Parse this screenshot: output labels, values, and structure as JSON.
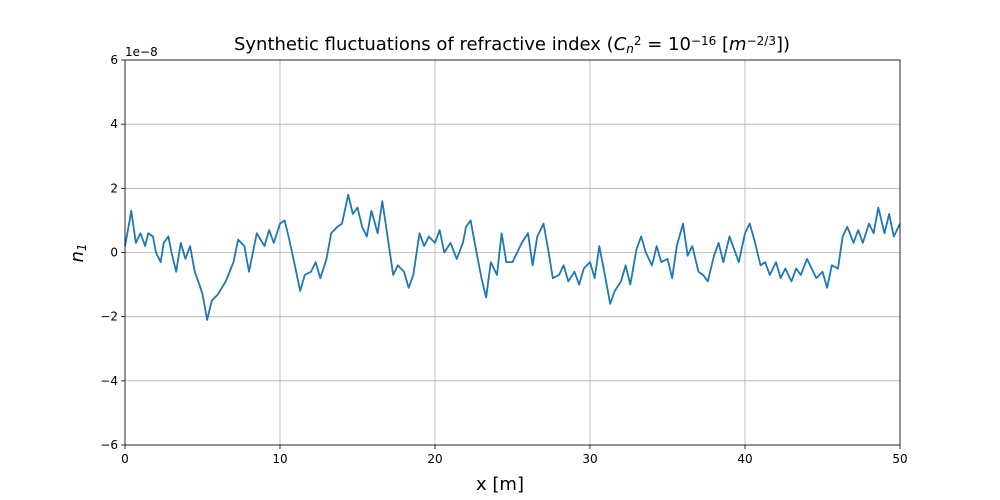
{
  "chart_data": {
    "type": "line",
    "title_parts": [
      {
        "text": "Synthetic fluctuations of refractive index (",
        "style": "normal"
      },
      {
        "text": "C",
        "style": "italic"
      },
      {
        "text": "n",
        "style": "sub"
      },
      {
        "text": "2",
        "style": "sup"
      },
      {
        "text": " = 10",
        "style": "normal"
      },
      {
        "text": "−16",
        "style": "sup"
      },
      {
        "text": " [",
        "style": "normal"
      },
      {
        "text": "m",
        "style": "italic"
      },
      {
        "text": "−2/3",
        "style": "sup"
      },
      {
        "text": "])",
        "style": "normal"
      }
    ],
    "x_label": "x [m]",
    "y_label_parts": [
      {
        "text": "n",
        "style": "italic"
      },
      {
        "text": "1",
        "style": "sub"
      }
    ],
    "y_offset_label": "1e−8",
    "color": "#1f77b4",
    "grid": true,
    "xlim": [
      0,
      50
    ],
    "xticks": [
      0,
      10,
      20,
      30,
      40,
      50
    ],
    "ylim": [
      -6,
      6
    ],
    "yticks": [
      {
        "value": -6,
        "label": "−6"
      },
      {
        "value": -4,
        "label": "−4"
      },
      {
        "value": -2,
        "label": "−2"
      },
      0,
      2,
      4,
      6
    ],
    "x": [
      0,
      0.3,
      0.4,
      0.7,
      1,
      1.3,
      1.5,
      1.8,
      2,
      2.3,
      2.5,
      2.8,
      3,
      3.3,
      3.6,
      3.9,
      4.2,
      4.5,
      4.8,
      5,
      5.3,
      5.6,
      6,
      6.5,
      7,
      7.3,
      7.7,
      8,
      8.5,
      9,
      9.3,
      9.6,
      10,
      10.3,
      10.6,
      11,
      11.3,
      11.6,
      12,
      12.3,
      12.6,
      13,
      13.3,
      13.7,
      14,
      14.4,
      14.7,
      15,
      15.3,
      15.6,
      15.9,
      16.3,
      16.6,
      17,
      17.3,
      17.6,
      18,
      18.3,
      18.6,
      19,
      19.3,
      19.6,
      20,
      20.3,
      20.6,
      21,
      21.4,
      21.8,
      22,
      22.3,
      22.6,
      23,
      23.3,
      23.6,
      24,
      24.3,
      24.6,
      25,
      25.3,
      25.6,
      26,
      26.3,
      26.6,
      27,
      27.3,
      27.6,
      28,
      28.3,
      28.6,
      29,
      29.3,
      29.6,
      30,
      30.3,
      30.6,
      31,
      31.3,
      31.6,
      32,
      32.3,
      32.6,
      33,
      33.3,
      33.6,
      34,
      34.3,
      34.6,
      35,
      35.3,
      35.6,
      36,
      36.3,
      36.6,
      37,
      37.3,
      37.6,
      38,
      38.3,
      38.6,
      39,
      39.3,
      39.6,
      40,
      40.3,
      40.6,
      41,
      41.3,
      41.6,
      42,
      42.3,
      42.6,
      43,
      43.3,
      43.6,
      44,
      44.3,
      44.6,
      45,
      45.3,
      45.6,
      46,
      46.3,
      46.6,
      47,
      47.3,
      47.6,
      48,
      48.3,
      48.6,
      49,
      49.3,
      49.6,
      50
    ],
    "values": [
      0.2,
      1.0,
      1.3,
      0.3,
      0.6,
      0.2,
      0.6,
      0.5,
      0,
      -0.3,
      0.3,
      0.5,
      0,
      -0.6,
      0.3,
      -0.2,
      0.2,
      -0.6,
      -1,
      -1.3,
      -2.1,
      -1.5,
      -1.3,
      -0.9,
      -0.3,
      0.4,
      0.2,
      -0.6,
      0.6,
      0.2,
      0.7,
      0.3,
      0.9,
      1,
      0.4,
      -0.5,
      -1.2,
      -0.7,
      -0.6,
      -0.3,
      -0.8,
      -0.2,
      0.6,
      0.8,
      0.9,
      1.8,
      1.2,
      1.4,
      0.8,
      0.5,
      1.3,
      0.6,
      1.6,
      0.3,
      -0.7,
      -0.4,
      -0.6,
      -1.1,
      -0.7,
      0.6,
      0.2,
      0.5,
      0.3,
      0.7,
      0,
      0.3,
      -0.2,
      0.3,
      0.8,
      1,
      0.2,
      -0.8,
      -1.4,
      -0.3,
      -0.7,
      0.6,
      -0.3,
      -0.3,
      0,
      0.3,
      0.6,
      -0.4,
      0.5,
      0.9,
      0.1,
      -0.8,
      -0.7,
      -0.4,
      -0.9,
      -0.6,
      -1,
      -0.5,
      -0.3,
      -0.8,
      0.2,
      -0.8,
      -1.6,
      -1.2,
      -0.9,
      -0.4,
      -1,
      0.1,
      0.5,
      0,
      -0.4,
      0.2,
      -0.3,
      -0.2,
      -0.8,
      0.2,
      0.9,
      -0.1,
      0.2,
      -0.6,
      -0.7,
      -0.9,
      -0.1,
      0.3,
      -0.3,
      0.5,
      0.1,
      -0.3,
      0.6,
      0.9,
      0.4,
      -0.4,
      -0.3,
      -0.7,
      -0.3,
      -0.8,
      -0.5,
      -0.9,
      -0.5,
      -0.7,
      -0.2,
      -0.5,
      -0.8,
      -0.6,
      -1.1,
      -0.4,
      -0.5,
      0.5,
      0.8,
      0.3,
      0.7,
      0.3,
      0.9,
      0.6,
      1.4,
      0.6,
      1.2,
      0.5,
      0.9
    ]
  }
}
